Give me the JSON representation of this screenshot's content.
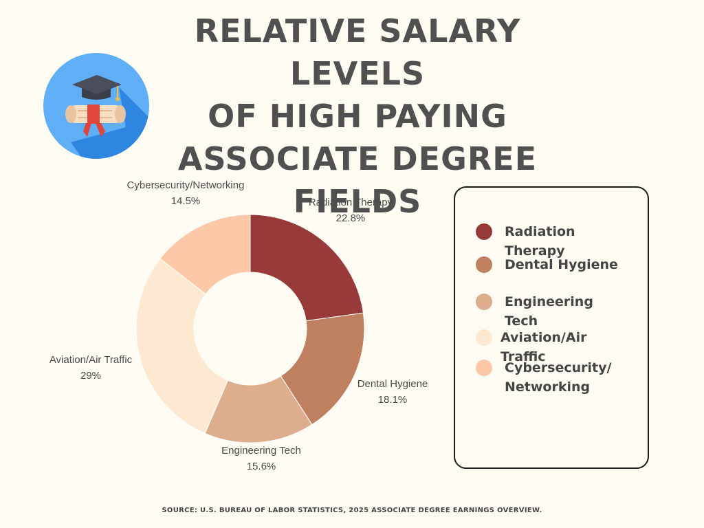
{
  "title_lines": [
    "RELATIVE SALARY LEVELS",
    "OF HIGH PAYING",
    "ASSOCIATE DEGREE",
    "FIELDS"
  ],
  "badge": {
    "icon": "graduation-cap-diploma-icon",
    "colors": {
      "circle": "#60aef5",
      "shadow": "#2f86e0",
      "cap": "#4a4e5a",
      "scroll": "#f8dcc0",
      "ribbon": "#e0443a"
    }
  },
  "chart_data": {
    "type": "pie",
    "donut": true,
    "title": "RELATIVE SALARY LEVELS OF HIGH PAYING ASSOCIATE DEGREE FIELDS",
    "slices": [
      {
        "label": "Radiation Therapy",
        "value": 22.8,
        "value_label": "22.8%",
        "color": "#983a3a"
      },
      {
        "label": "Dental Hygiene",
        "value": 18.1,
        "value_label": "18.1%",
        "color": "#bf8060"
      },
      {
        "label": "Engineering Tech",
        "value": 15.6,
        "value_label": "15.6%",
        "color": "#dcae8e"
      },
      {
        "label": "Aviation/Air Traffic",
        "value": 29,
        "value_label": "29%",
        "color": "#fde9d1"
      },
      {
        "label": "Cybersecurity/Networking",
        "value": 14.5,
        "value_label": "14.5%",
        "color": "#fdc8a8"
      }
    ],
    "legend_position": "right"
  },
  "legend": {
    "items": [
      {
        "label": "Radiation Therapy",
        "color": "#983a3a"
      },
      {
        "label": "Dental Hygiene",
        "color": "#bf8060"
      },
      {
        "label": "Engineering Tech",
        "color": "#dcae8e"
      },
      {
        "label": "Aviation/Air Traffic",
        "color": "#fde9d1"
      },
      {
        "label": "Cybersecurity/ Networking",
        "color": "#fdc8a8"
      }
    ]
  },
  "source": "SOURCE:  U.S. BUREAU OF LABOR STATISTICS, 2025 ASSOCIATE DEGREE EARNINGS OVERVIEW."
}
